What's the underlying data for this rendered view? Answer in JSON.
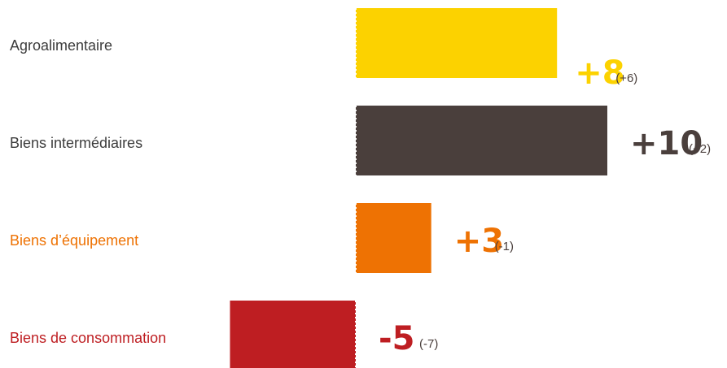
{
  "chart_data": {
    "type": "bar",
    "orientation": "horizontal",
    "categories": [
      "Agroalimentaire",
      "Biens intermédiaires",
      "Biens d’équipement",
      "Biens de consommation"
    ],
    "values": [
      8,
      10,
      3,
      -5
    ],
    "value_labels": [
      "+8",
      "+10",
      "+3",
      "-5"
    ],
    "change_labels": [
      "(+6)",
      "(+2)",
      "(-1)",
      "(-7)"
    ],
    "colors": [
      "#fcd200",
      "#4a3f3c",
      "#ee7203",
      "#be1e22"
    ],
    "label_colors": [
      "#3c3c3c",
      "#3c3c3c",
      "#ee7203",
      "#be1e22"
    ],
    "value_colors": [
      "#fcd200",
      "#4a3f3c",
      "#ee7203",
      "#be1e22"
    ],
    "xlim": [
      -5,
      10
    ],
    "grid": false,
    "legend": "none"
  }
}
